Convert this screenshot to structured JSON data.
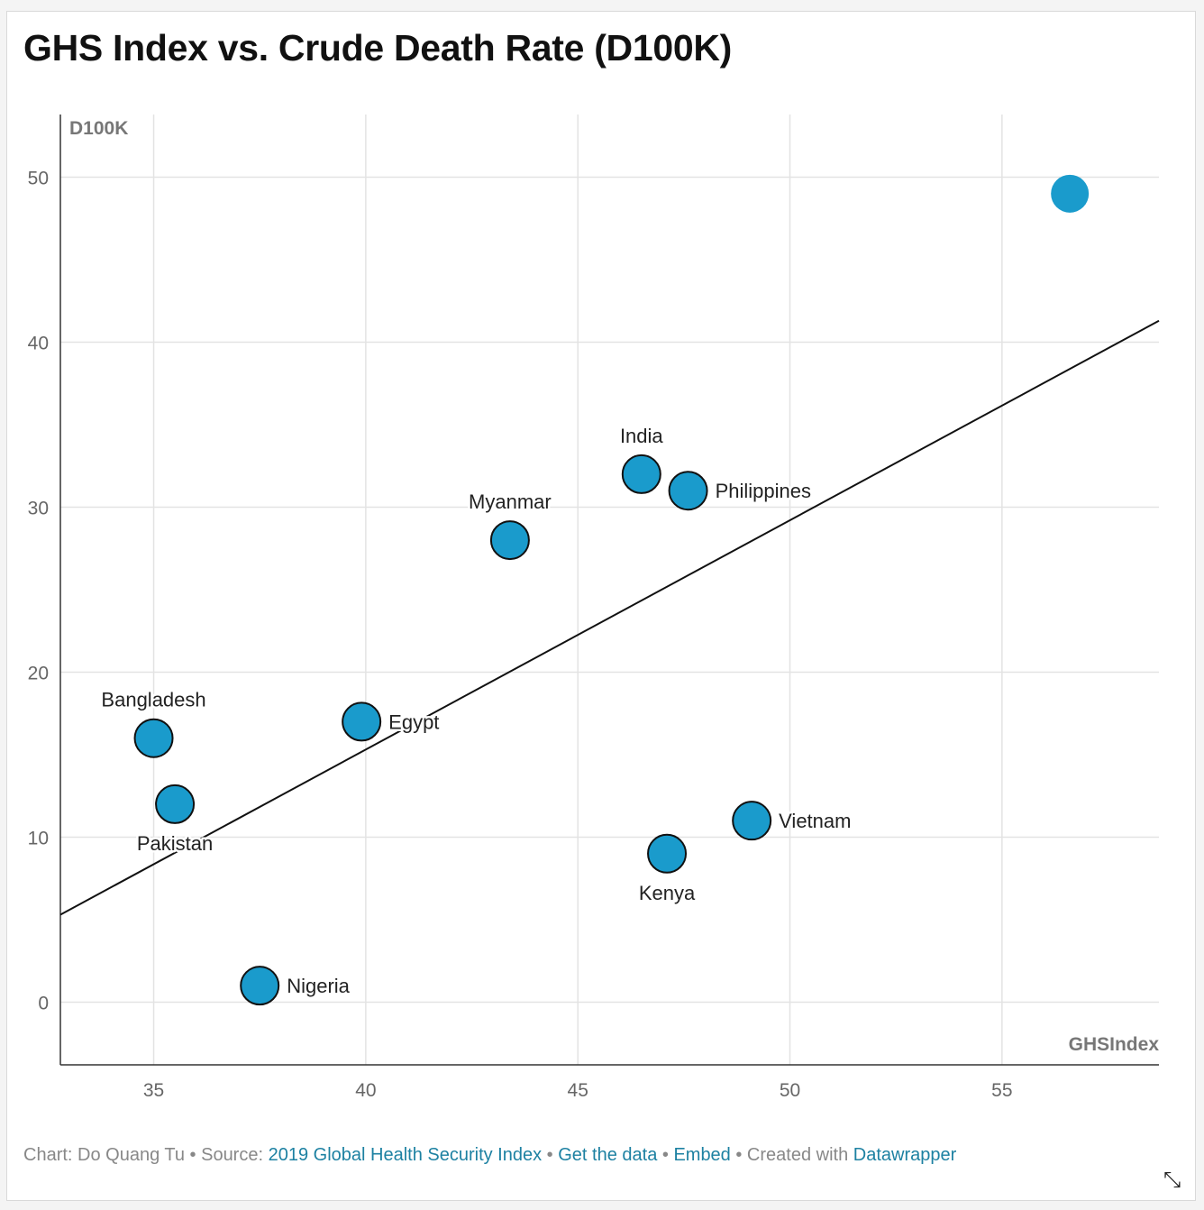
{
  "title": "GHS Index vs. Crude Death Rate (D100K)",
  "chart_data": {
    "type": "scatter",
    "title": "GHS Index vs. Crude Death Rate (D100K)",
    "xlabel": "GHSIndex",
    "ylabel": "D100K",
    "xlim": [
      32.8,
      58.7
    ],
    "ylim": [
      -3.8,
      53.8
    ],
    "xticks": [
      35,
      40,
      45,
      50,
      55
    ],
    "yticks": [
      0,
      10,
      20,
      30,
      40,
      50
    ],
    "grid": true,
    "marker_color": "#1a9bcc",
    "points": [
      {
        "label": "Bangladesh",
        "x": 35.0,
        "y": 16.0,
        "label_pos": "top"
      },
      {
        "label": "Pakistan",
        "x": 35.5,
        "y": 12.0,
        "label_pos": "bottom"
      },
      {
        "label": "Nigeria",
        "x": 37.5,
        "y": 1.0,
        "label_pos": "right"
      },
      {
        "label": "Egypt",
        "x": 39.9,
        "y": 17.0,
        "label_pos": "right"
      },
      {
        "label": "Myanmar",
        "x": 43.4,
        "y": 28.0,
        "label_pos": "top"
      },
      {
        "label": "India",
        "x": 46.5,
        "y": 32.0,
        "label_pos": "top"
      },
      {
        "label": "Philippines",
        "x": 47.6,
        "y": 31.0,
        "label_pos": "right"
      },
      {
        "label": "Kenya",
        "x": 47.1,
        "y": 9.0,
        "label_pos": "bottom"
      },
      {
        "label": "Vietnam",
        "x": 49.1,
        "y": 11.0,
        "label_pos": "right"
      },
      {
        "label": "",
        "x": 56.6,
        "y": 49.0,
        "label_pos": "none",
        "no_outline": true
      }
    ],
    "trendline": {
      "x": [
        32.8,
        58.7
      ],
      "y": [
        5.3,
        41.3
      ]
    }
  },
  "footer": {
    "prefix": "Chart: Do Quang Tu • Source: ",
    "source_link": "2019 Global Health Security Index",
    "sep1": " • ",
    "data_link": "Get the data",
    "sep2": " • ",
    "embed_link": "Embed",
    "sep3": " • Created with ",
    "dw_link": "Datawrapper"
  },
  "resize_icon": "⤡"
}
